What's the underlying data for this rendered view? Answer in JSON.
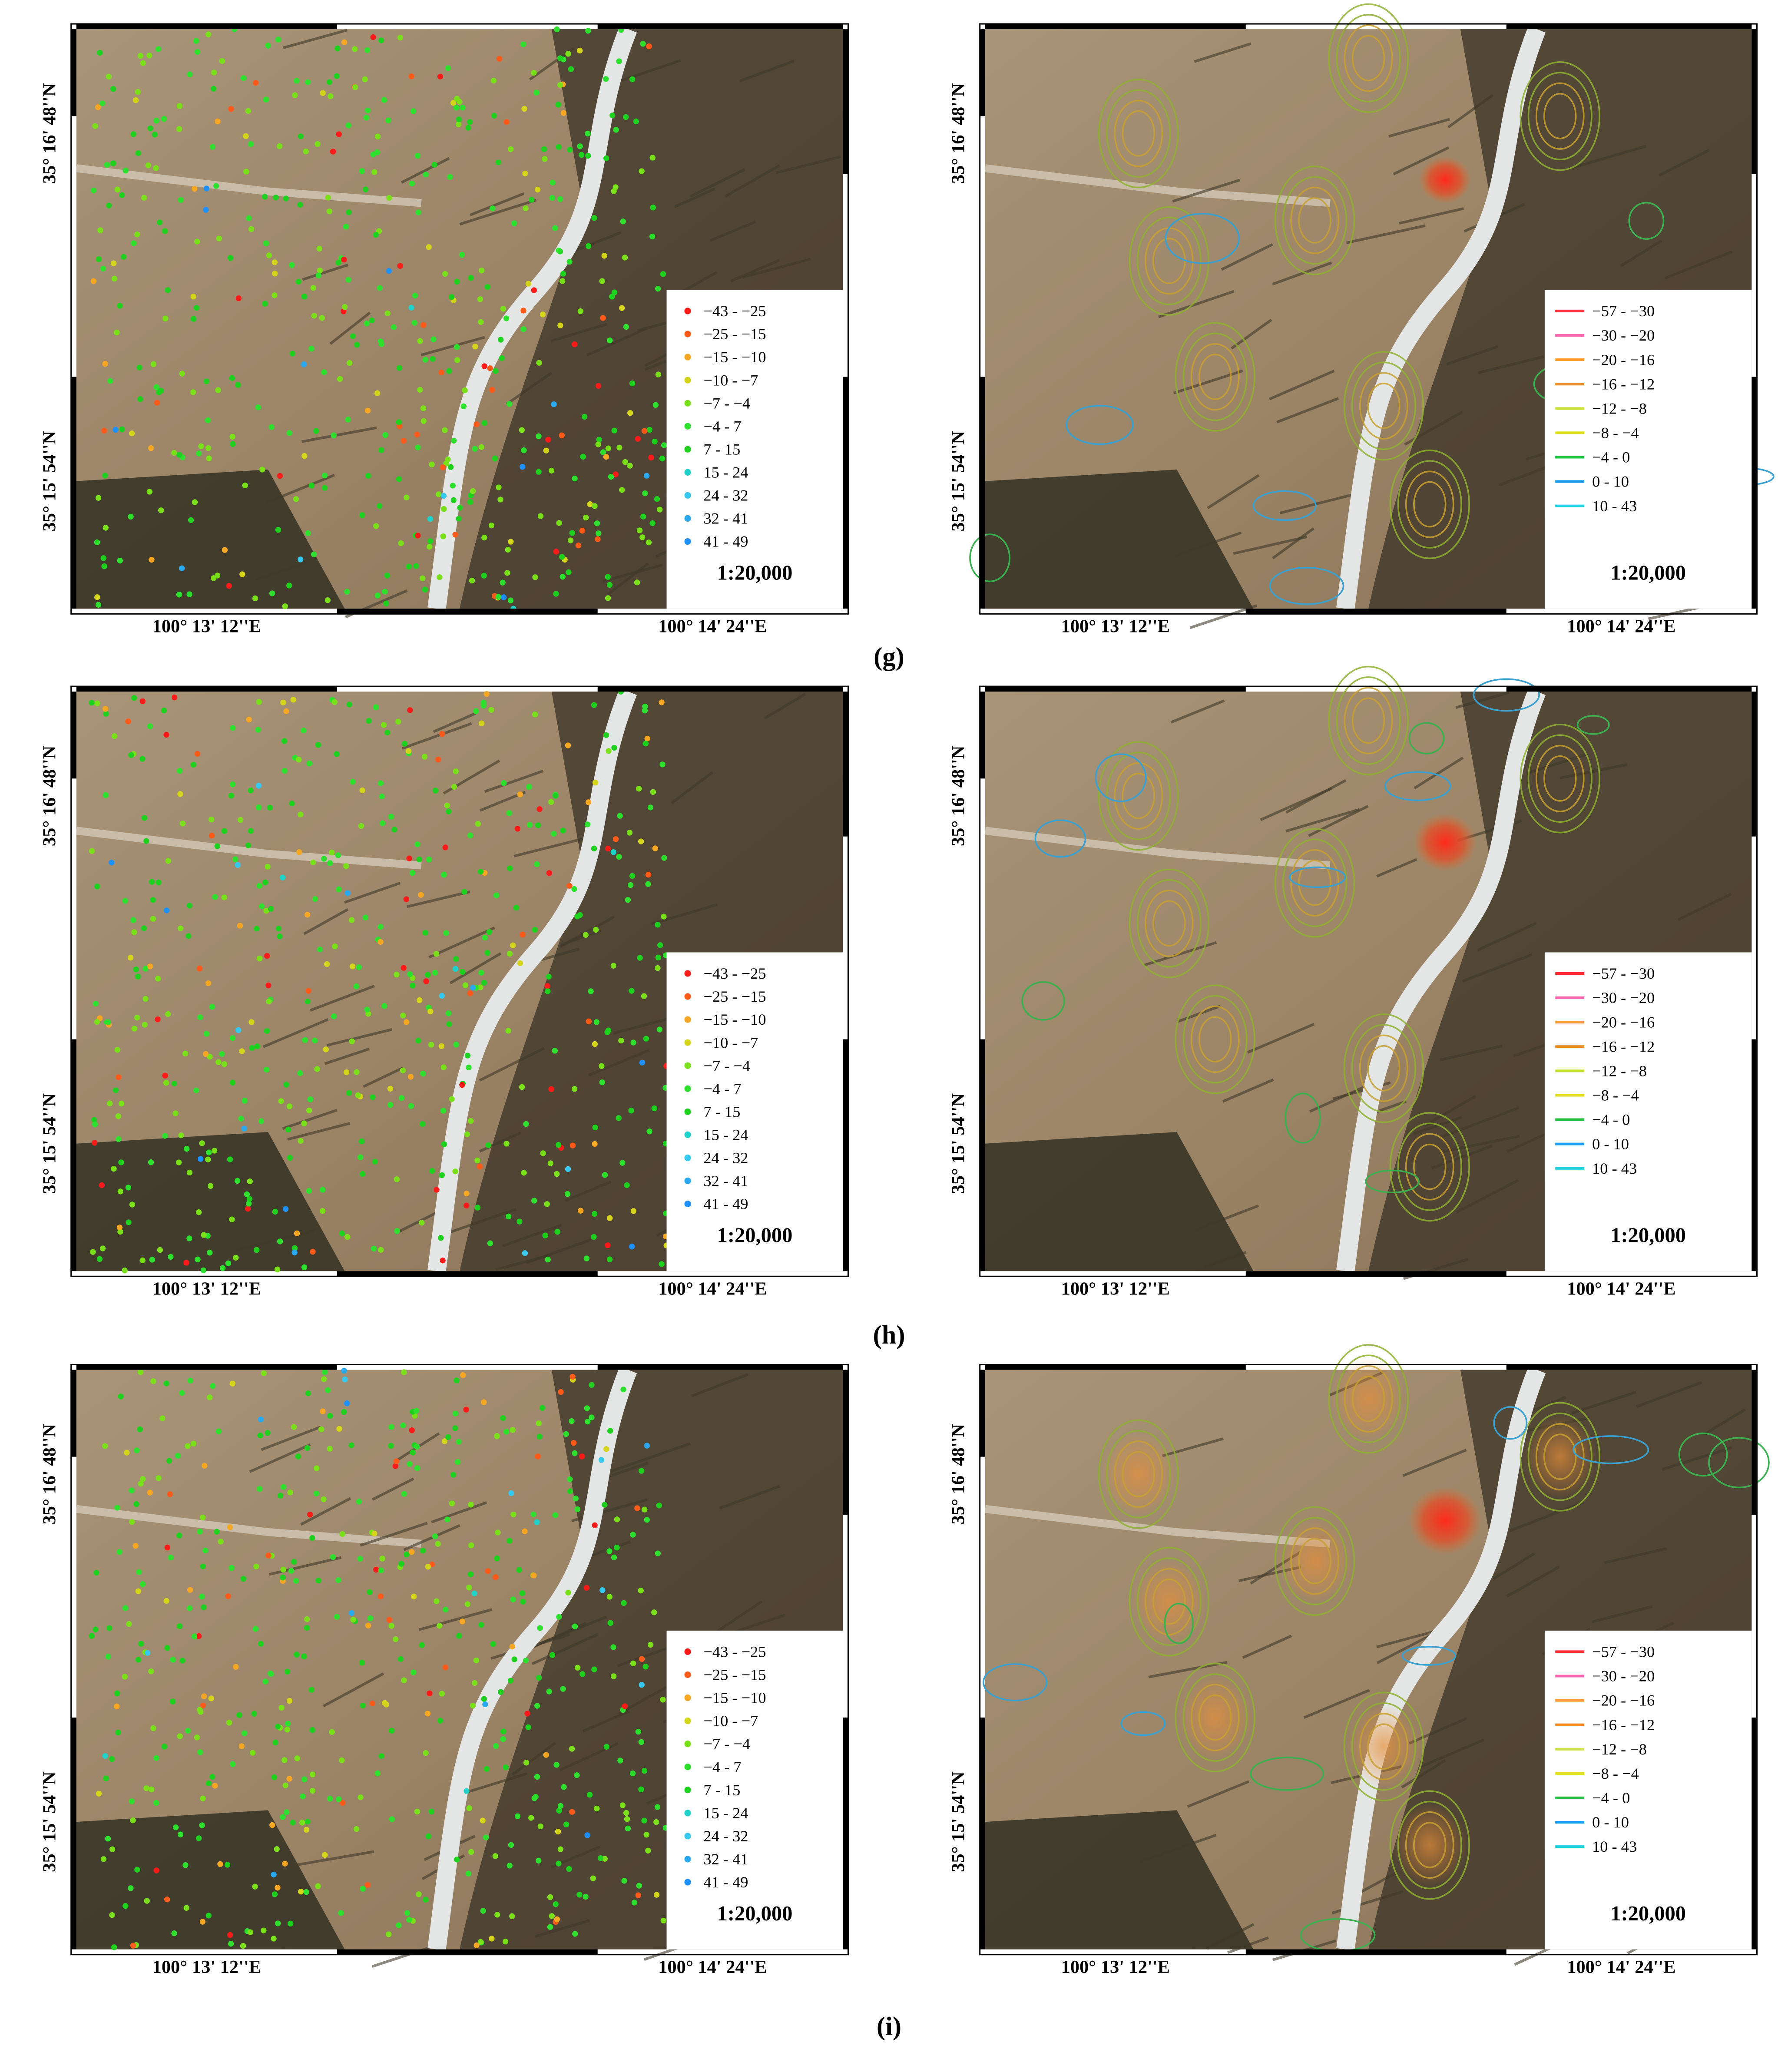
{
  "figure": {
    "lat_labels": [
      "35° 16' 48''N",
      "35° 15' 54''N"
    ],
    "lon_labels": [
      "100° 13' 12''E",
      "100° 14' 24''E"
    ],
    "scale": "1:20,000",
    "point_legend": [
      "−43  - −25",
      "−25  - −15",
      "−15  - −10",
      "−10  - −7",
      "−7   - −4",
      "−4   -  7",
      "7   -  15",
      "15  -  24",
      "24  -  32",
      "32  -  41",
      "41  -  49"
    ],
    "contour_legend": [
      "−57  - −30",
      "−30  - −20",
      "−20  - −16",
      "−16  - −12",
      "−12  - −8",
      "−8   - −4",
      "−4   -  0",
      "0   -  10",
      "10  -  43"
    ],
    "panel_labels": [
      "(g)",
      "(h)",
      "(i)"
    ]
  }
}
